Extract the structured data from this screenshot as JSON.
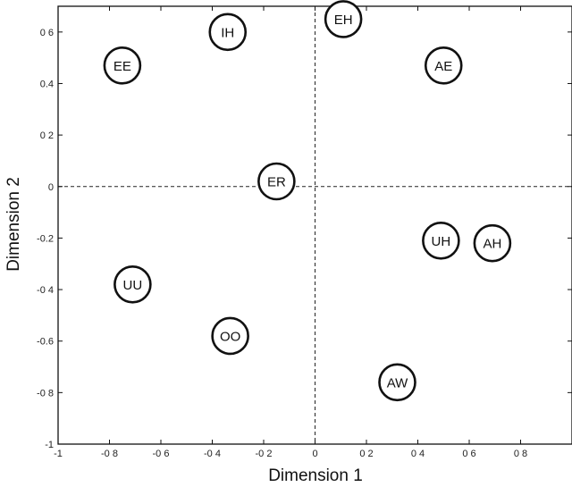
{
  "chart_data": {
    "type": "scatter",
    "xlabel": "Dimension 1",
    "ylabel": "Dimension 2",
    "xlim": [
      -1,
      1
    ],
    "ylim": [
      -1,
      0.7
    ],
    "x_ticks": [
      {
        "value": -1,
        "label": "-1"
      },
      {
        "value": -0.8,
        "label": "-0 8"
      },
      {
        "value": -0.6,
        "label": "-0 6"
      },
      {
        "value": -0.4,
        "label": "-0 4"
      },
      {
        "value": -0.2,
        "label": "-0 2"
      },
      {
        "value": 0,
        "label": "0"
      },
      {
        "value": 0.2,
        "label": "0 2"
      },
      {
        "value": 0.4,
        "label": "0 4"
      },
      {
        "value": 0.6,
        "label": "0 6"
      },
      {
        "value": 0.8,
        "label": "0 8"
      }
    ],
    "y_ticks": [
      {
        "value": 0.6,
        "label": "0 6"
      },
      {
        "value": 0.4,
        "label": "0.4"
      },
      {
        "value": 0.2,
        "label": "0 2"
      },
      {
        "value": 0,
        "label": "0"
      },
      {
        "value": -0.2,
        "label": "-0.2"
      },
      {
        "value": -0.4,
        "label": "-0 4"
      },
      {
        "value": -0.6,
        "label": "-0.6"
      },
      {
        "value": -0.8,
        "label": "-0 8"
      },
      {
        "value": -1,
        "label": "-1"
      }
    ],
    "reference_lines": {
      "x": 0,
      "y": 0,
      "style": "dashed"
    },
    "grid": false,
    "points": [
      {
        "label": "EH",
        "x": 0.11,
        "y": 0.65
      },
      {
        "label": "IH",
        "x": -0.34,
        "y": 0.6
      },
      {
        "label": "EE",
        "x": -0.75,
        "y": 0.47
      },
      {
        "label": "AE",
        "x": 0.5,
        "y": 0.47
      },
      {
        "label": "ER",
        "x": -0.15,
        "y": 0.02
      },
      {
        "label": "UH",
        "x": 0.49,
        "y": -0.21
      },
      {
        "label": "AH",
        "x": 0.69,
        "y": -0.22
      },
      {
        "label": "UU",
        "x": -0.71,
        "y": -0.38
      },
      {
        "label": "OO",
        "x": -0.33,
        "y": -0.58
      },
      {
        "label": "AW",
        "x": 0.32,
        "y": -0.76
      }
    ]
  }
}
